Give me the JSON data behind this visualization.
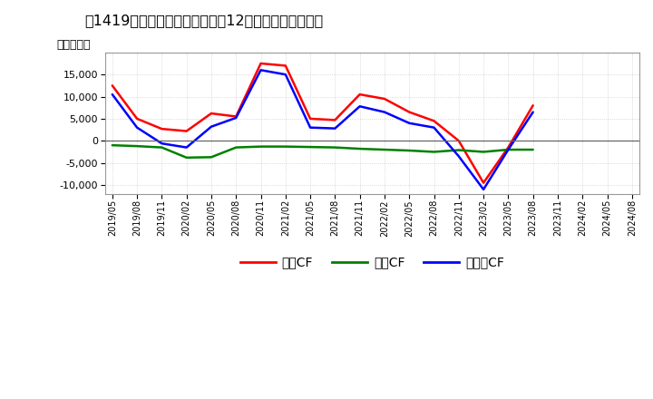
{
  "ylabel": "（百万円）",
  "dates": [
    "2019/05",
    "2019/08",
    "2019/11",
    "2020/02",
    "2020/05",
    "2020/08",
    "2020/11",
    "2021/02",
    "2021/05",
    "2021/08",
    "2021/11",
    "2022/02",
    "2022/05",
    "2022/08",
    "2022/11",
    "2023/02",
    "2023/05",
    "2023/08",
    "2023/11",
    "2024/02",
    "2024/05",
    "2024/08"
  ],
  "operating_cf": [
    12500,
    5000,
    2700,
    2200,
    6200,
    5500,
    17500,
    17000,
    5000,
    4700,
    10500,
    9500,
    6500,
    4500,
    0,
    -9500,
    -1500,
    8000,
    null,
    null,
    null,
    null
  ],
  "investing_cf": [
    -1000,
    -1200,
    -1500,
    -3800,
    -3700,
    -1500,
    -1300,
    -1300,
    -1400,
    -1500,
    -1800,
    -2000,
    -2200,
    -2500,
    -2100,
    -2500,
    -2000,
    -2000,
    null,
    null,
    null,
    null
  ],
  "free_cf": [
    10500,
    3000,
    -600,
    -1500,
    3200,
    5200,
    16000,
    15000,
    3000,
    2800,
    7800,
    6500,
    4000,
    3000,
    -3500,
    -11000,
    -2000,
    6500,
    null,
    null,
    null,
    null
  ],
  "color_operating": "#ff0000",
  "color_investing": "#008000",
  "color_free": "#0000ff",
  "background_color": "#ffffff",
  "plot_bg_color": "#ffffff",
  "grid_color": "#bbbbbb",
  "ylim": [
    -12000,
    20000
  ],
  "yticks": [
    -10000,
    -5000,
    0,
    5000,
    10000,
    15000
  ],
  "legend_labels": [
    "営業CF",
    "投資CF",
    "フリーCF"
  ],
  "title_fontsize": 12,
  "axis_fontsize": 8,
  "ylabel_fontsize": 9
}
